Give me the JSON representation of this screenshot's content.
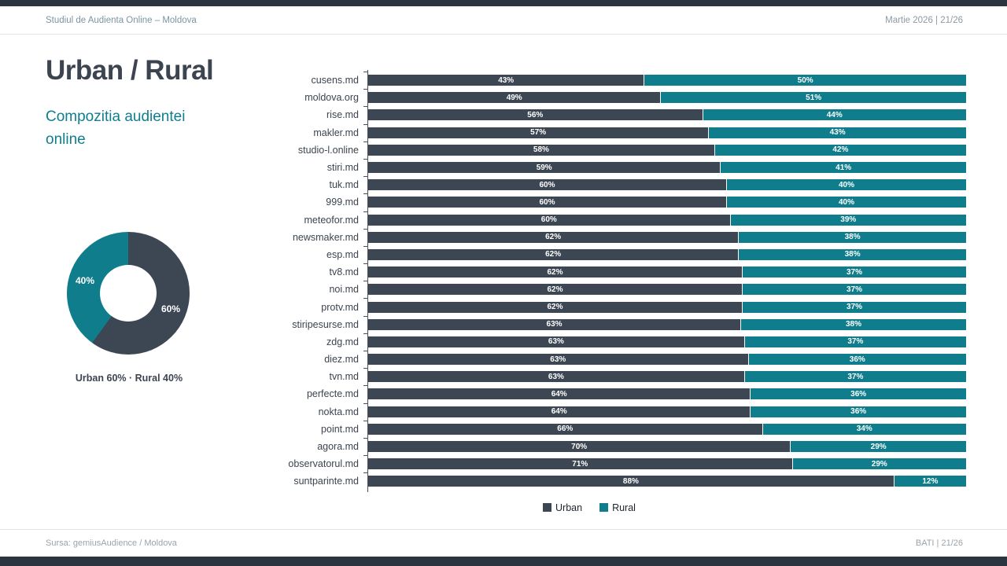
{
  "meta": {
    "header_left": "Studiul de Audienta Online – Moldova",
    "header_right": "Martie 2026   |   21/26",
    "footer_left": "Sursa: gemiusAudience / Moldova",
    "footer_right": "BATI   |   21/26"
  },
  "title": "Urban / Rural",
  "subtitle": "Compozitia audientei online",
  "colors": {
    "urban": "#3d4653",
    "rural": "#0f7d8c",
    "chrome_bar": "#2b3540",
    "title_text": "#3c4450",
    "subtitle_text": "#0f7e8e",
    "axis": "#46515c"
  },
  "donut": {
    "label_urban": "60%",
    "label_rural": "40%",
    "caption": "Urban 60%  ·  Rural 40%"
  },
  "chart_data": [
    {
      "type": "pie",
      "subtype": "donut",
      "title": "Compozitia audientei online (total)",
      "labels": [
        "Urban",
        "Rural"
      ],
      "values": [
        60,
        40
      ],
      "unit": "%"
    },
    {
      "type": "bar",
      "orientation": "horizontal",
      "stacked": true,
      "unit": "%",
      "legend_position": "bottom",
      "categories": [
        "cusens.md",
        "moldova.org",
        "rise.md",
        "makler.md",
        "studio-l.online",
        "stiri.md",
        "tuk.md",
        "999.md",
        "meteofor.md",
        "newsmaker.md",
        "esp.md",
        "tv8.md",
        "noi.md",
        "protv.md",
        "stiripesurse.md",
        "zdg.md",
        "diez.md",
        "tvn.md",
        "perfecte.md",
        "nokta.md",
        "point.md",
        "agora.md",
        "observatorul.md",
        "suntparinte.md"
      ],
      "series": [
        {
          "name": "Urban",
          "values": [
            43,
            49,
            56,
            57,
            58,
            59,
            60,
            60,
            60,
            62,
            62,
            62,
            62,
            62,
            63,
            63,
            63,
            63,
            64,
            64,
            66,
            70,
            71,
            88
          ]
        },
        {
          "name": "Rural",
          "values": [
            50,
            51,
            44,
            43,
            42,
            41,
            40,
            40,
            39,
            38,
            38,
            37,
            37,
            37,
            38,
            37,
            36,
            37,
            36,
            36,
            34,
            29,
            29,
            12
          ]
        }
      ]
    }
  ]
}
